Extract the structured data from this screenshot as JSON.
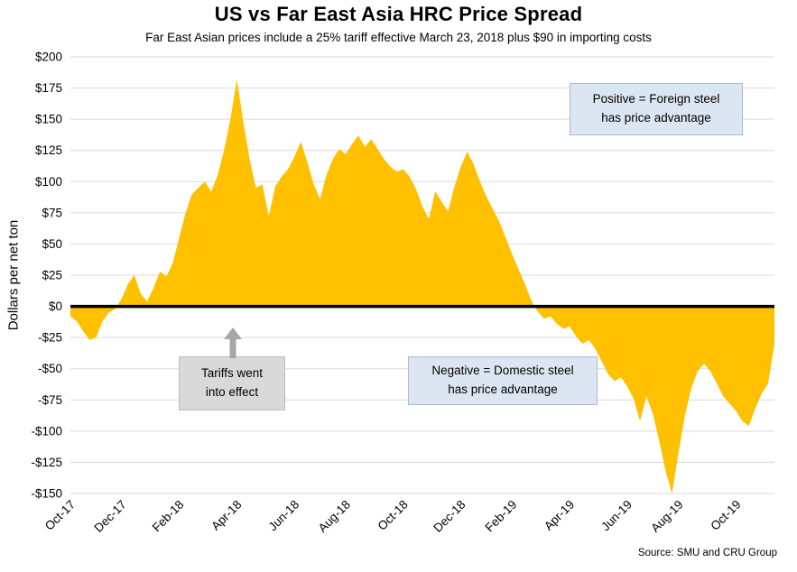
{
  "page": {
    "source": "Source: SMU and CRU Group"
  },
  "chart_data": {
    "type": "area",
    "title": "US vs Far East Asia HRC Price Spread",
    "subtitle": "Far East Asian prices include a 25% tariff effective March 23, 2018 plus $90 in importing costs",
    "ylabel": "Dollars per net ton",
    "xlabel": "",
    "ylim": [
      -150,
      200
    ],
    "baseline": 0,
    "grid": true,
    "legend": "none",
    "colors": {
      "area": "#FFC000",
      "grid": "#D9D9D9",
      "zero_line": "#000000"
    },
    "yticks": [
      {
        "value": 200,
        "label": "$200"
      },
      {
        "value": 175,
        "label": "$175"
      },
      {
        "value": 150,
        "label": "$150"
      },
      {
        "value": 125,
        "label": "$125"
      },
      {
        "value": 100,
        "label": "$100"
      },
      {
        "value": 75,
        "label": "$75"
      },
      {
        "value": 50,
        "label": "$50"
      },
      {
        "value": 25,
        "label": "$25"
      },
      {
        "value": 0,
        "label": "$0"
      },
      {
        "value": -25,
        "label": "-$25"
      },
      {
        "value": -50,
        "label": "-$50"
      },
      {
        "value": -75,
        "label": "-$75"
      },
      {
        "value": -100,
        "label": "-$100"
      },
      {
        "value": -125,
        "label": "-$125"
      },
      {
        "value": -150,
        "label": "-$150"
      }
    ],
    "xticks": [
      {
        "index": 0,
        "label": "Oct-17"
      },
      {
        "index": 8,
        "label": "Dec-17"
      },
      {
        "index": 17,
        "label": "Feb-18"
      },
      {
        "index": 26,
        "label": "Apr-18"
      },
      {
        "index": 35,
        "label": "Jun-18"
      },
      {
        "index": 43,
        "label": "Aug-18"
      },
      {
        "index": 52,
        "label": "Oct-18"
      },
      {
        "index": 61,
        "label": "Dec-18"
      },
      {
        "index": 69,
        "label": "Feb-19"
      },
      {
        "index": 78,
        "label": "Apr-19"
      },
      {
        "index": 87,
        "label": "Jun-19"
      },
      {
        "index": 95,
        "label": "Aug-19"
      },
      {
        "index": 104,
        "label": "Oct-19"
      }
    ],
    "values": [
      -8,
      -12,
      -20,
      -27,
      -25,
      -12,
      -5,
      -2,
      6,
      18,
      25,
      10,
      4,
      15,
      28,
      24,
      35,
      55,
      75,
      90,
      95,
      100,
      92,
      105,
      125,
      150,
      182,
      148,
      118,
      95,
      98,
      72,
      96,
      104,
      110,
      120,
      132,
      116,
      98,
      86,
      105,
      118,
      126,
      122,
      130,
      137,
      128,
      134,
      126,
      118,
      112,
      108,
      110,
      104,
      94,
      80,
      70,
      92,
      84,
      76,
      96,
      112,
      124,
      114,
      100,
      88,
      78,
      68,
      55,
      42,
      30,
      18,
      5,
      -4,
      -10,
      -8,
      -14,
      -18,
      -16,
      -24,
      -30,
      -27,
      -34,
      -44,
      -54,
      -60,
      -57,
      -64,
      -74,
      -92,
      -72,
      -86,
      -108,
      -132,
      -150,
      -118,
      -88,
      -66,
      -52,
      -46,
      -52,
      -62,
      -72,
      -78,
      -84,
      -92,
      -96,
      -82,
      -70,
      -62,
      -30
    ],
    "annotations": {
      "positive": {
        "lines": [
          "Positive = Foreign steel",
          "has price advantage"
        ],
        "bg": "#DCE6F2"
      },
      "negative": {
        "lines": [
          "Negative = Domestic steel",
          "has price advantage"
        ],
        "bg": "#DCE6F2"
      },
      "tariffs": {
        "lines": [
          "Tariffs went",
          "into effect"
        ],
        "bg": "#D9D9D9"
      }
    }
  }
}
